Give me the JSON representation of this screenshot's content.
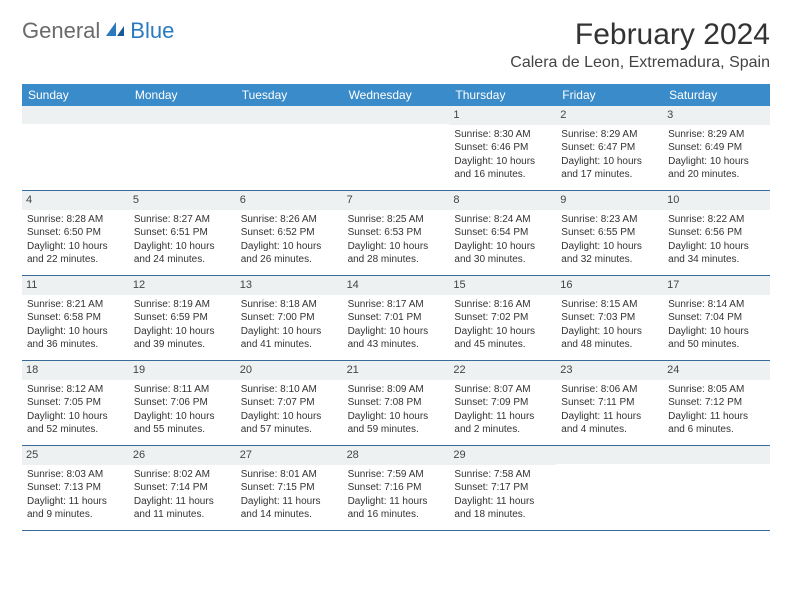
{
  "brand": {
    "general": "General",
    "blue": "Blue"
  },
  "title": "February 2024",
  "location": "Calera de Leon, Extremadura, Spain",
  "colors": {
    "header_bg": "#3a8bc9",
    "header_text": "#ffffff",
    "daynum_bg": "#eef1f2",
    "week_border": "#3a6a9a",
    "brand_blue": "#2a7ac0",
    "brand_gray": "#6a6a6a"
  },
  "dayNames": [
    "Sunday",
    "Monday",
    "Tuesday",
    "Wednesday",
    "Thursday",
    "Friday",
    "Saturday"
  ],
  "weeks": [
    [
      {
        "empty": true
      },
      {
        "empty": true
      },
      {
        "empty": true
      },
      {
        "empty": true
      },
      {
        "day": "1",
        "sunrise": "Sunrise: 8:30 AM",
        "sunset": "Sunset: 6:46 PM",
        "d1": "Daylight: 10 hours",
        "d2": "and 16 minutes."
      },
      {
        "day": "2",
        "sunrise": "Sunrise: 8:29 AM",
        "sunset": "Sunset: 6:47 PM",
        "d1": "Daylight: 10 hours",
        "d2": "and 17 minutes."
      },
      {
        "day": "3",
        "sunrise": "Sunrise: 8:29 AM",
        "sunset": "Sunset: 6:49 PM",
        "d1": "Daylight: 10 hours",
        "d2": "and 20 minutes."
      }
    ],
    [
      {
        "day": "4",
        "sunrise": "Sunrise: 8:28 AM",
        "sunset": "Sunset: 6:50 PM",
        "d1": "Daylight: 10 hours",
        "d2": "and 22 minutes."
      },
      {
        "day": "5",
        "sunrise": "Sunrise: 8:27 AM",
        "sunset": "Sunset: 6:51 PM",
        "d1": "Daylight: 10 hours",
        "d2": "and 24 minutes."
      },
      {
        "day": "6",
        "sunrise": "Sunrise: 8:26 AM",
        "sunset": "Sunset: 6:52 PM",
        "d1": "Daylight: 10 hours",
        "d2": "and 26 minutes."
      },
      {
        "day": "7",
        "sunrise": "Sunrise: 8:25 AM",
        "sunset": "Sunset: 6:53 PM",
        "d1": "Daylight: 10 hours",
        "d2": "and 28 minutes."
      },
      {
        "day": "8",
        "sunrise": "Sunrise: 8:24 AM",
        "sunset": "Sunset: 6:54 PM",
        "d1": "Daylight: 10 hours",
        "d2": "and 30 minutes."
      },
      {
        "day": "9",
        "sunrise": "Sunrise: 8:23 AM",
        "sunset": "Sunset: 6:55 PM",
        "d1": "Daylight: 10 hours",
        "d2": "and 32 minutes."
      },
      {
        "day": "10",
        "sunrise": "Sunrise: 8:22 AM",
        "sunset": "Sunset: 6:56 PM",
        "d1": "Daylight: 10 hours",
        "d2": "and 34 minutes."
      }
    ],
    [
      {
        "day": "11",
        "sunrise": "Sunrise: 8:21 AM",
        "sunset": "Sunset: 6:58 PM",
        "d1": "Daylight: 10 hours",
        "d2": "and 36 minutes."
      },
      {
        "day": "12",
        "sunrise": "Sunrise: 8:19 AM",
        "sunset": "Sunset: 6:59 PM",
        "d1": "Daylight: 10 hours",
        "d2": "and 39 minutes."
      },
      {
        "day": "13",
        "sunrise": "Sunrise: 8:18 AM",
        "sunset": "Sunset: 7:00 PM",
        "d1": "Daylight: 10 hours",
        "d2": "and 41 minutes."
      },
      {
        "day": "14",
        "sunrise": "Sunrise: 8:17 AM",
        "sunset": "Sunset: 7:01 PM",
        "d1": "Daylight: 10 hours",
        "d2": "and 43 minutes."
      },
      {
        "day": "15",
        "sunrise": "Sunrise: 8:16 AM",
        "sunset": "Sunset: 7:02 PM",
        "d1": "Daylight: 10 hours",
        "d2": "and 45 minutes."
      },
      {
        "day": "16",
        "sunrise": "Sunrise: 8:15 AM",
        "sunset": "Sunset: 7:03 PM",
        "d1": "Daylight: 10 hours",
        "d2": "and 48 minutes."
      },
      {
        "day": "17",
        "sunrise": "Sunrise: 8:14 AM",
        "sunset": "Sunset: 7:04 PM",
        "d1": "Daylight: 10 hours",
        "d2": "and 50 minutes."
      }
    ],
    [
      {
        "day": "18",
        "sunrise": "Sunrise: 8:12 AM",
        "sunset": "Sunset: 7:05 PM",
        "d1": "Daylight: 10 hours",
        "d2": "and 52 minutes."
      },
      {
        "day": "19",
        "sunrise": "Sunrise: 8:11 AM",
        "sunset": "Sunset: 7:06 PM",
        "d1": "Daylight: 10 hours",
        "d2": "and 55 minutes."
      },
      {
        "day": "20",
        "sunrise": "Sunrise: 8:10 AM",
        "sunset": "Sunset: 7:07 PM",
        "d1": "Daylight: 10 hours",
        "d2": "and 57 minutes."
      },
      {
        "day": "21",
        "sunrise": "Sunrise: 8:09 AM",
        "sunset": "Sunset: 7:08 PM",
        "d1": "Daylight: 10 hours",
        "d2": "and 59 minutes."
      },
      {
        "day": "22",
        "sunrise": "Sunrise: 8:07 AM",
        "sunset": "Sunset: 7:09 PM",
        "d1": "Daylight: 11 hours",
        "d2": "and 2 minutes."
      },
      {
        "day": "23",
        "sunrise": "Sunrise: 8:06 AM",
        "sunset": "Sunset: 7:11 PM",
        "d1": "Daylight: 11 hours",
        "d2": "and 4 minutes."
      },
      {
        "day": "24",
        "sunrise": "Sunrise: 8:05 AM",
        "sunset": "Sunset: 7:12 PM",
        "d1": "Daylight: 11 hours",
        "d2": "and 6 minutes."
      }
    ],
    [
      {
        "day": "25",
        "sunrise": "Sunrise: 8:03 AM",
        "sunset": "Sunset: 7:13 PM",
        "d1": "Daylight: 11 hours",
        "d2": "and 9 minutes."
      },
      {
        "day": "26",
        "sunrise": "Sunrise: 8:02 AM",
        "sunset": "Sunset: 7:14 PM",
        "d1": "Daylight: 11 hours",
        "d2": "and 11 minutes."
      },
      {
        "day": "27",
        "sunrise": "Sunrise: 8:01 AM",
        "sunset": "Sunset: 7:15 PM",
        "d1": "Daylight: 11 hours",
        "d2": "and 14 minutes."
      },
      {
        "day": "28",
        "sunrise": "Sunrise: 7:59 AM",
        "sunset": "Sunset: 7:16 PM",
        "d1": "Daylight: 11 hours",
        "d2": "and 16 minutes."
      },
      {
        "day": "29",
        "sunrise": "Sunrise: 7:58 AM",
        "sunset": "Sunset: 7:17 PM",
        "d1": "Daylight: 11 hours",
        "d2": "and 18 minutes."
      },
      {
        "empty": true
      },
      {
        "empty": true
      }
    ]
  ]
}
